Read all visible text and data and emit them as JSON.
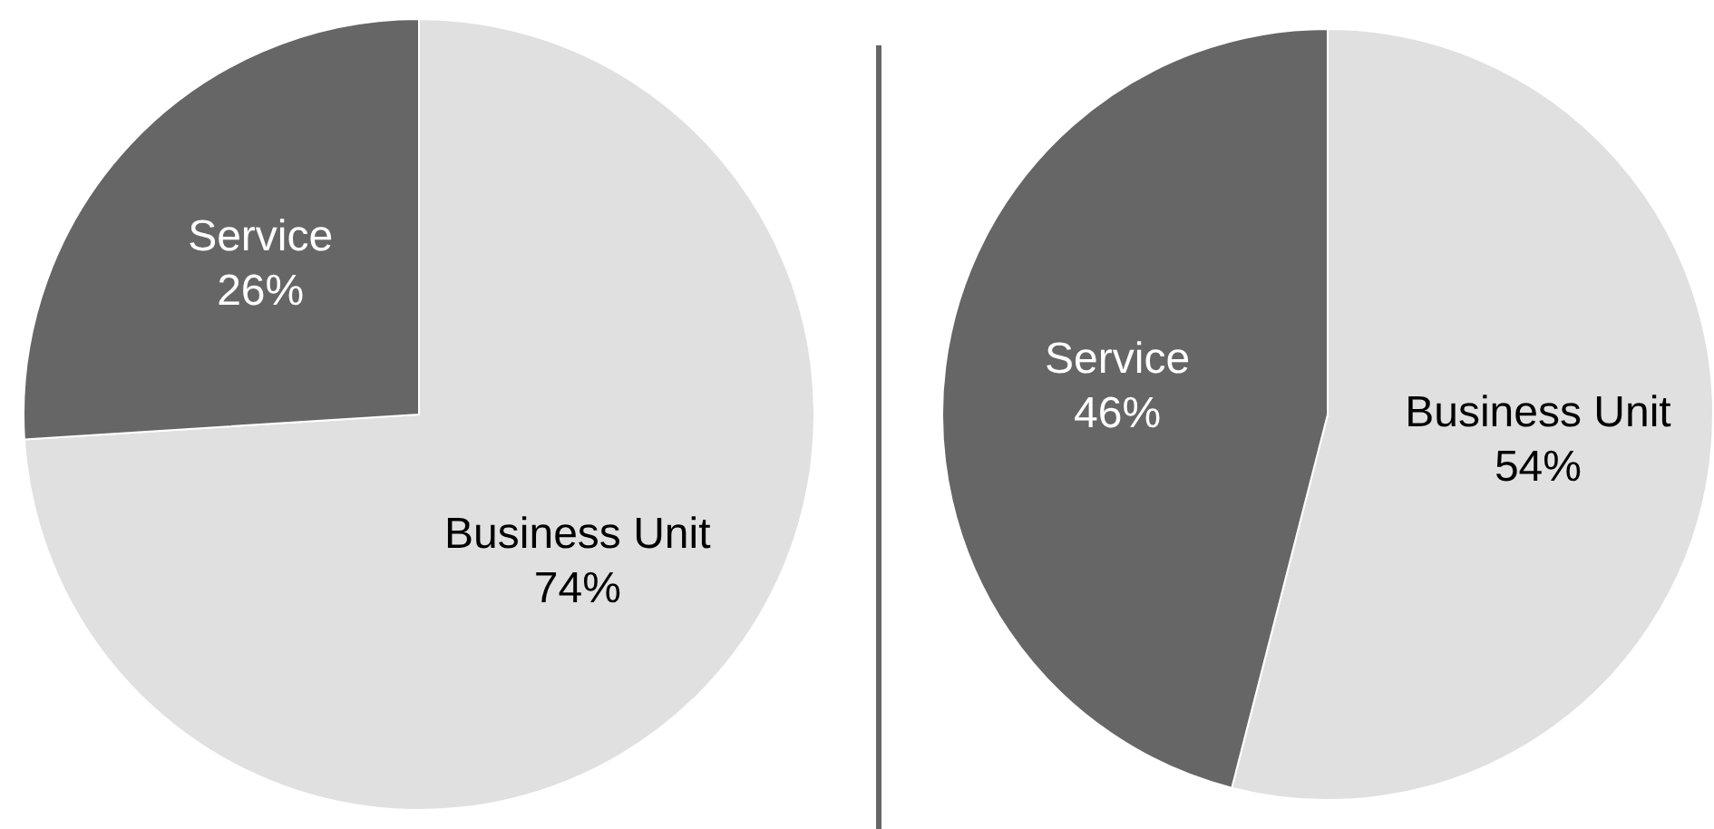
{
  "chart_data": [
    {
      "type": "pie",
      "categories": [
        "Business Unit",
        "Service"
      ],
      "values": [
        74,
        26
      ],
      "colors": [
        "#e0e0e0",
        "#666666"
      ],
      "value_labels": [
        "74%",
        "26%"
      ],
      "legend": false
    },
    {
      "type": "pie",
      "categories": [
        "Business Unit",
        "Service"
      ],
      "values": [
        54,
        46
      ],
      "colors": [
        "#e0e0e0",
        "#666666"
      ],
      "value_labels": [
        "54%",
        "46%"
      ],
      "legend": false
    }
  ]
}
